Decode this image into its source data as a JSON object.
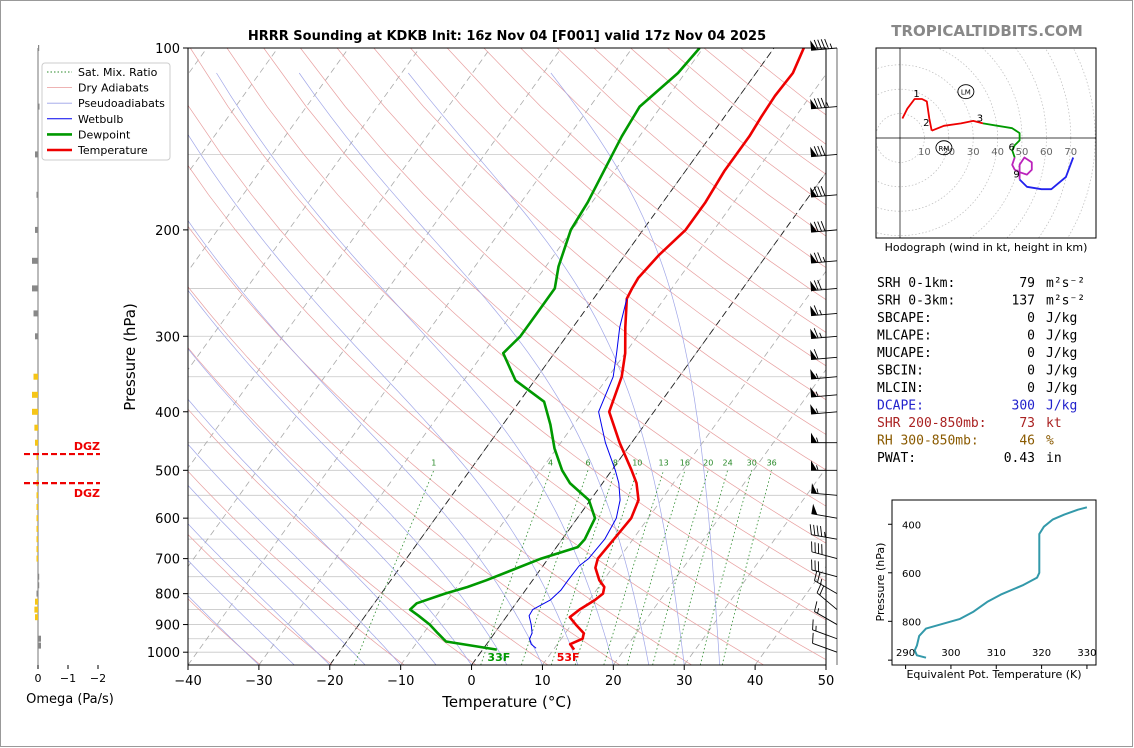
{
  "chart_data": [
    {
      "type": "line",
      "title": "HRRR Sounding at KDKB Init: 16z Nov 04 [F001] valid 17z Nov 04 2025",
      "xlabel": "Temperature (°C)",
      "ylabel": "Pressure (hPa)",
      "xlim": [
        -40,
        50
      ],
      "ylim": [
        1050,
        100
      ],
      "y_scale": "log",
      "x_ticks": [
        "−40",
        "−30",
        "−20",
        "−10",
        "0",
        "10",
        "20",
        "30",
        "40",
        "50"
      ],
      "y_ticks": [
        100,
        200,
        300,
        400,
        500,
        600,
        700,
        800,
        900,
        1000
      ],
      "legend": {
        "placement": "top-left",
        "entries": [
          {
            "label": "Sat. Mix. Ratio",
            "color": "#2a8a2a",
            "style": "dotted"
          },
          {
            "label": "Dry Adiabats",
            "color": "#e89a9a",
            "style": "solid-thin"
          },
          {
            "label": "Pseudoadiabats",
            "color": "#9aa0e8",
            "style": "solid-thin"
          },
          {
            "label": "Wetbulb",
            "color": "#0000ee",
            "style": "solid"
          },
          {
            "label": "Dewpoint",
            "color": "#009900",
            "style": "thick"
          },
          {
            "label": "Temperature",
            "color": "#ee0000",
            "style": "thick"
          }
        ]
      },
      "mixing_ratio_labels": [
        "1",
        "4",
        "6",
        "8",
        "10",
        "13",
        "16",
        "20",
        "24",
        "30",
        "36"
      ],
      "surface_labels": {
        "dewpoint": "33F",
        "temperature": "53F"
      },
      "series": [
        {
          "name": "Temperature",
          "color": "#ee0000",
          "points": [
            [
              12.9,
              990
            ],
            [
              11.8,
              970
            ],
            [
              13.0,
              950
            ],
            [
              12.6,
              930
            ],
            [
              10.6,
              900
            ],
            [
              9.0,
              875
            ],
            [
              9.6,
              850
            ],
            [
              10.8,
              820
            ],
            [
              11.3,
              800
            ],
            [
              10.8,
              780
            ],
            [
              9.4,
              760
            ],
            [
              7.6,
              725
            ],
            [
              7.0,
              700
            ],
            [
              7.3,
              650
            ],
            [
              7.6,
              600
            ],
            [
              6.8,
              560
            ],
            [
              4.8,
              525
            ],
            [
              2.8,
              500
            ],
            [
              -1.7,
              450
            ],
            [
              -6.3,
              400
            ],
            [
              -8.1,
              350
            ],
            [
              -10.0,
              320
            ],
            [
              -12.6,
              290
            ],
            [
              -15.3,
              260
            ],
            [
              -15.6,
              250
            ],
            [
              -15.8,
              240
            ],
            [
              -15.2,
              220
            ],
            [
              -14.0,
              200
            ],
            [
              -14.0,
              180
            ],
            [
              -14.5,
              160
            ],
            [
              -14.5,
              140
            ],
            [
              -14.8,
              130
            ],
            [
              -15.0,
              120
            ],
            [
              -14.8,
              110
            ],
            [
              -15.8,
              100
            ]
          ]
        },
        {
          "name": "Dewpoint",
          "color": "#009900",
          "points": [
            [
              2.0,
              990
            ],
            [
              -6.0,
              960
            ],
            [
              -8.0,
              930
            ],
            [
              -10.0,
              900
            ],
            [
              -12.5,
              870
            ],
            [
              -14.3,
              850
            ],
            [
              -14.0,
              830
            ],
            [
              -11.0,
              800
            ],
            [
              -8.5,
              780
            ],
            [
              -6.5,
              760
            ],
            [
              -1.0,
              700
            ],
            [
              3.0,
              670
            ],
            [
              3.2,
              650
            ],
            [
              2.5,
              600
            ],
            [
              -0.2,
              560
            ],
            [
              -4.6,
              525
            ],
            [
              -7.0,
              500
            ],
            [
              -10.3,
              460
            ],
            [
              -13.3,
              420
            ],
            [
              -16.5,
              385
            ],
            [
              -22.7,
              355
            ],
            [
              -27.2,
              320
            ],
            [
              -26.5,
              300
            ],
            [
              -26.5,
              270
            ],
            [
              -26.5,
              250
            ],
            [
              -28.2,
              230
            ],
            [
              -30.2,
              200
            ],
            [
              -30.6,
              180
            ],
            [
              -31.5,
              160
            ],
            [
              -32.5,
              140
            ],
            [
              -33.0,
              125
            ],
            [
              -31.0,
              110
            ],
            [
              -30.5,
              100
            ]
          ]
        },
        {
          "name": "Wetbulb",
          "color": "#0000ee",
          "points": [
            [
              7.4,
              985
            ],
            [
              6.3,
              970
            ],
            [
              5.5,
              950
            ],
            [
              5.3,
              930
            ],
            [
              4.3,
              900
            ],
            [
              3.1,
              870
            ],
            [
              3.0,
              850
            ],
            [
              4.5,
              820
            ],
            [
              5.0,
              790
            ],
            [
              5.0,
              760
            ],
            [
              5.1,
              720
            ],
            [
              5.7,
              700
            ],
            [
              6.0,
              650
            ],
            [
              5.5,
              600
            ],
            [
              4.2,
              560
            ],
            [
              2.3,
              525
            ],
            [
              0.5,
              500
            ],
            [
              -3.7,
              450
            ],
            [
              -7.8,
              400
            ],
            [
              -9.3,
              350
            ],
            [
              -11.2,
              320
            ],
            [
              -13.4,
              290
            ],
            [
              -15.3,
              260
            ]
          ]
        }
      ]
    },
    {
      "type": "bar",
      "title": "",
      "xlabel": "Omega (Pa/s)",
      "x_ticks": [
        "0",
        "−1",
        "−2"
      ],
      "dgz_label": "DGZ",
      "dgz_bounds_hpa": [
        470,
        525
      ],
      "bars": [
        {
          "p": 100,
          "omega": 0.03
        },
        {
          "p": 125,
          "omega": 0.05
        },
        {
          "p": 150,
          "omega": -0.1
        },
        {
          "p": 175,
          "omega": -0.05
        },
        {
          "p": 200,
          "omega": -0.1
        },
        {
          "p": 225,
          "omega": -0.2
        },
        {
          "p": 250,
          "omega": -0.2
        },
        {
          "p": 275,
          "omega": -0.15
        },
        {
          "p": 300,
          "omega": -0.1
        },
        {
          "p": 350,
          "omega": -0.15
        },
        {
          "p": 375,
          "omega": -0.2
        },
        {
          "p": 400,
          "omega": -0.2
        },
        {
          "p": 425,
          "omega": -0.12
        },
        {
          "p": 450,
          "omega": -0.1
        },
        {
          "p": 475,
          "omega": -0.05
        },
        {
          "p": 500,
          "omega": -0.05
        },
        {
          "p": 525,
          "omega": -0.05
        },
        {
          "p": 550,
          "omega": -0.05
        },
        {
          "p": 575,
          "omega": -0.05
        },
        {
          "p": 600,
          "omega": -0.05
        },
        {
          "p": 625,
          "omega": -0.05
        },
        {
          "p": 650,
          "omega": -0.05
        },
        {
          "p": 675,
          "omega": -0.05
        },
        {
          "p": 700,
          "omega": -0.05
        },
        {
          "p": 750,
          "omega": 0.03
        },
        {
          "p": 775,
          "omega": 0.03
        },
        {
          "p": 800,
          "omega": -0.05
        },
        {
          "p": 825,
          "omega": -0.1
        },
        {
          "p": 850,
          "omega": -0.12
        },
        {
          "p": 875,
          "omega": -0.1
        },
        {
          "p": 950,
          "omega": 0.1
        },
        {
          "p": 975,
          "omega": 0.1
        }
      ]
    },
    {
      "type": "line",
      "title": "Hodograph (wind in kt, height in km)",
      "x_ring_labels": [
        "10",
        "20",
        "30",
        "40",
        "50",
        "60",
        "70"
      ],
      "height_labels": [
        "1",
        "2",
        "3",
        "6",
        "9"
      ],
      "markers": [
        "LM",
        "RM"
      ],
      "series": [
        {
          "name": "0-1km",
          "color": "#ee0000",
          "points": [
            [
              1,
              8
            ],
            [
              3,
              12
            ],
            [
              6,
              16
            ],
            [
              9,
              16
            ],
            [
              11,
              15
            ],
            [
              12,
              8
            ],
            [
              13,
              3
            ]
          ]
        },
        {
          "name": "1-3km",
          "color": "#ee0000",
          "points": [
            [
              13,
              3
            ],
            [
              18,
              5
            ],
            [
              25,
              6
            ],
            [
              30,
              7
            ],
            [
              34,
              6
            ]
          ]
        },
        {
          "name": "3-6km",
          "color": "#009900",
          "points": [
            [
              34,
              6
            ],
            [
              40,
              5
            ],
            [
              46,
              4
            ],
            [
              49,
              2
            ],
            [
              49,
              -1
            ],
            [
              47,
              -3
            ],
            [
              46,
              -5
            ],
            [
              47,
              -8
            ]
          ]
        },
        {
          "name": "6-9km",
          "color": "#bb22bb",
          "points": [
            [
              47,
              -8
            ],
            [
              46,
              -11
            ],
            [
              47,
              -13
            ],
            [
              49,
              -14
            ],
            [
              52,
              -15
            ],
            [
              54,
              -13
            ],
            [
              54,
              -10
            ],
            [
              51,
              -8
            ],
            [
              49,
              -11
            ],
            [
              49,
              -17
            ]
          ]
        },
        {
          "name": "9-12km",
          "color": "#2222ee",
          "points": [
            [
              49,
              -17
            ],
            [
              52,
              -20
            ],
            [
              58,
              -21
            ],
            [
              62,
              -21
            ],
            [
              68,
              -16
            ],
            [
              71,
              -8
            ]
          ]
        }
      ]
    },
    {
      "type": "line",
      "title": "",
      "xlabel": "Equivalent Pot. Temperature (K)",
      "ylabel": "Pressure (hPa)",
      "x_ticks": [
        290,
        300,
        310,
        320,
        330
      ],
      "y_ticks": [
        400,
        600,
        800
      ],
      "series": [
        {
          "name": "theta-e",
          "color": "#3399aa",
          "points": [
            [
              294.5,
              950
            ],
            [
              292.5,
              940
            ],
            [
              292.0,
              920
            ],
            [
              292.5,
              900
            ],
            [
              293.0,
              860
            ],
            [
              294.5,
              830
            ],
            [
              302.0,
              790
            ],
            [
              305.0,
              760
            ],
            [
              308.0,
              720
            ],
            [
              311.0,
              690
            ],
            [
              316.0,
              650
            ],
            [
              319.0,
              620
            ],
            [
              319.5,
              600
            ],
            [
              319.5,
              560
            ],
            [
              319.5,
              480
            ],
            [
              319.5,
              440
            ],
            [
              320.5,
              410
            ],
            [
              322.5,
              380
            ],
            [
              325.0,
              360
            ],
            [
              328.0,
              340
            ],
            [
              330.0,
              330
            ]
          ]
        }
      ]
    }
  ],
  "brand": "TROPICALTIDBITS.COM",
  "indices": [
    {
      "label": "SRH 0-1km:",
      "value": "79",
      "unit": "m²s⁻²",
      "color": "#000000"
    },
    {
      "label": "SRH 0-3km:",
      "value": "137",
      "unit": "m²s⁻²",
      "color": "#000000"
    },
    {
      "label": "SBCAPE:",
      "value": "0",
      "unit": "J/kg",
      "color": "#000000"
    },
    {
      "label": "MLCAPE:",
      "value": "0",
      "unit": "J/kg",
      "color": "#000000"
    },
    {
      "label": "MUCAPE:",
      "value": "0",
      "unit": "J/kg",
      "color": "#000000"
    },
    {
      "label": "SBCIN:",
      "value": "0",
      "unit": "J/kg",
      "color": "#000000"
    },
    {
      "label": "MLCIN:",
      "value": "0",
      "unit": "J/kg",
      "color": "#000000"
    },
    {
      "label": "DCAPE:",
      "value": "300",
      "unit": "J/kg",
      "color": "#2222cc"
    },
    {
      "label": "SHR 200-850mb:",
      "value": "73",
      "unit": "kt",
      "color": "#aa2222"
    },
    {
      "label": "RH 300-850mb:",
      "value": "46",
      "unit": "%",
      "color": "#8a5a00"
    },
    {
      "label": "PWAT:",
      "value": "0.43",
      "unit": "in",
      "color": "#000000"
    }
  ],
  "wind_barbs": [
    {
      "p": 100,
      "dir": 265,
      "spd": 95
    },
    {
      "p": 125,
      "dir": 265,
      "spd": 85
    },
    {
      "p": 150,
      "dir": 265,
      "spd": 80
    },
    {
      "p": 175,
      "dir": 265,
      "spd": 80
    },
    {
      "p": 200,
      "dir": 265,
      "spd": 80
    },
    {
      "p": 225,
      "dir": 265,
      "spd": 75
    },
    {
      "p": 250,
      "dir": 265,
      "spd": 70
    },
    {
      "p": 275,
      "dir": 265,
      "spd": 65
    },
    {
      "p": 300,
      "dir": 265,
      "spd": 65
    },
    {
      "p": 325,
      "dir": 265,
      "spd": 60
    },
    {
      "p": 350,
      "dir": 265,
      "spd": 55
    },
    {
      "p": 375,
      "dir": 265,
      "spd": 55
    },
    {
      "p": 400,
      "dir": 265,
      "spd": 55
    },
    {
      "p": 450,
      "dir": 270,
      "spd": 55
    },
    {
      "p": 500,
      "dir": 270,
      "spd": 55
    },
    {
      "p": 550,
      "dir": 275,
      "spd": 55
    },
    {
      "p": 600,
      "dir": 280,
      "spd": 50
    },
    {
      "p": 650,
      "dir": 280,
      "spd": 45
    },
    {
      "p": 700,
      "dir": 285,
      "spd": 40
    },
    {
      "p": 750,
      "dir": 285,
      "spd": 30
    },
    {
      "p": 800,
      "dir": 300,
      "spd": 25
    },
    {
      "p": 850,
      "dir": 310,
      "spd": 20
    },
    {
      "p": 900,
      "dir": 300,
      "spd": 15
    },
    {
      "p": 950,
      "dir": 290,
      "spd": 15
    },
    {
      "p": 1000,
      "dir": 290,
      "spd": 10
    }
  ]
}
